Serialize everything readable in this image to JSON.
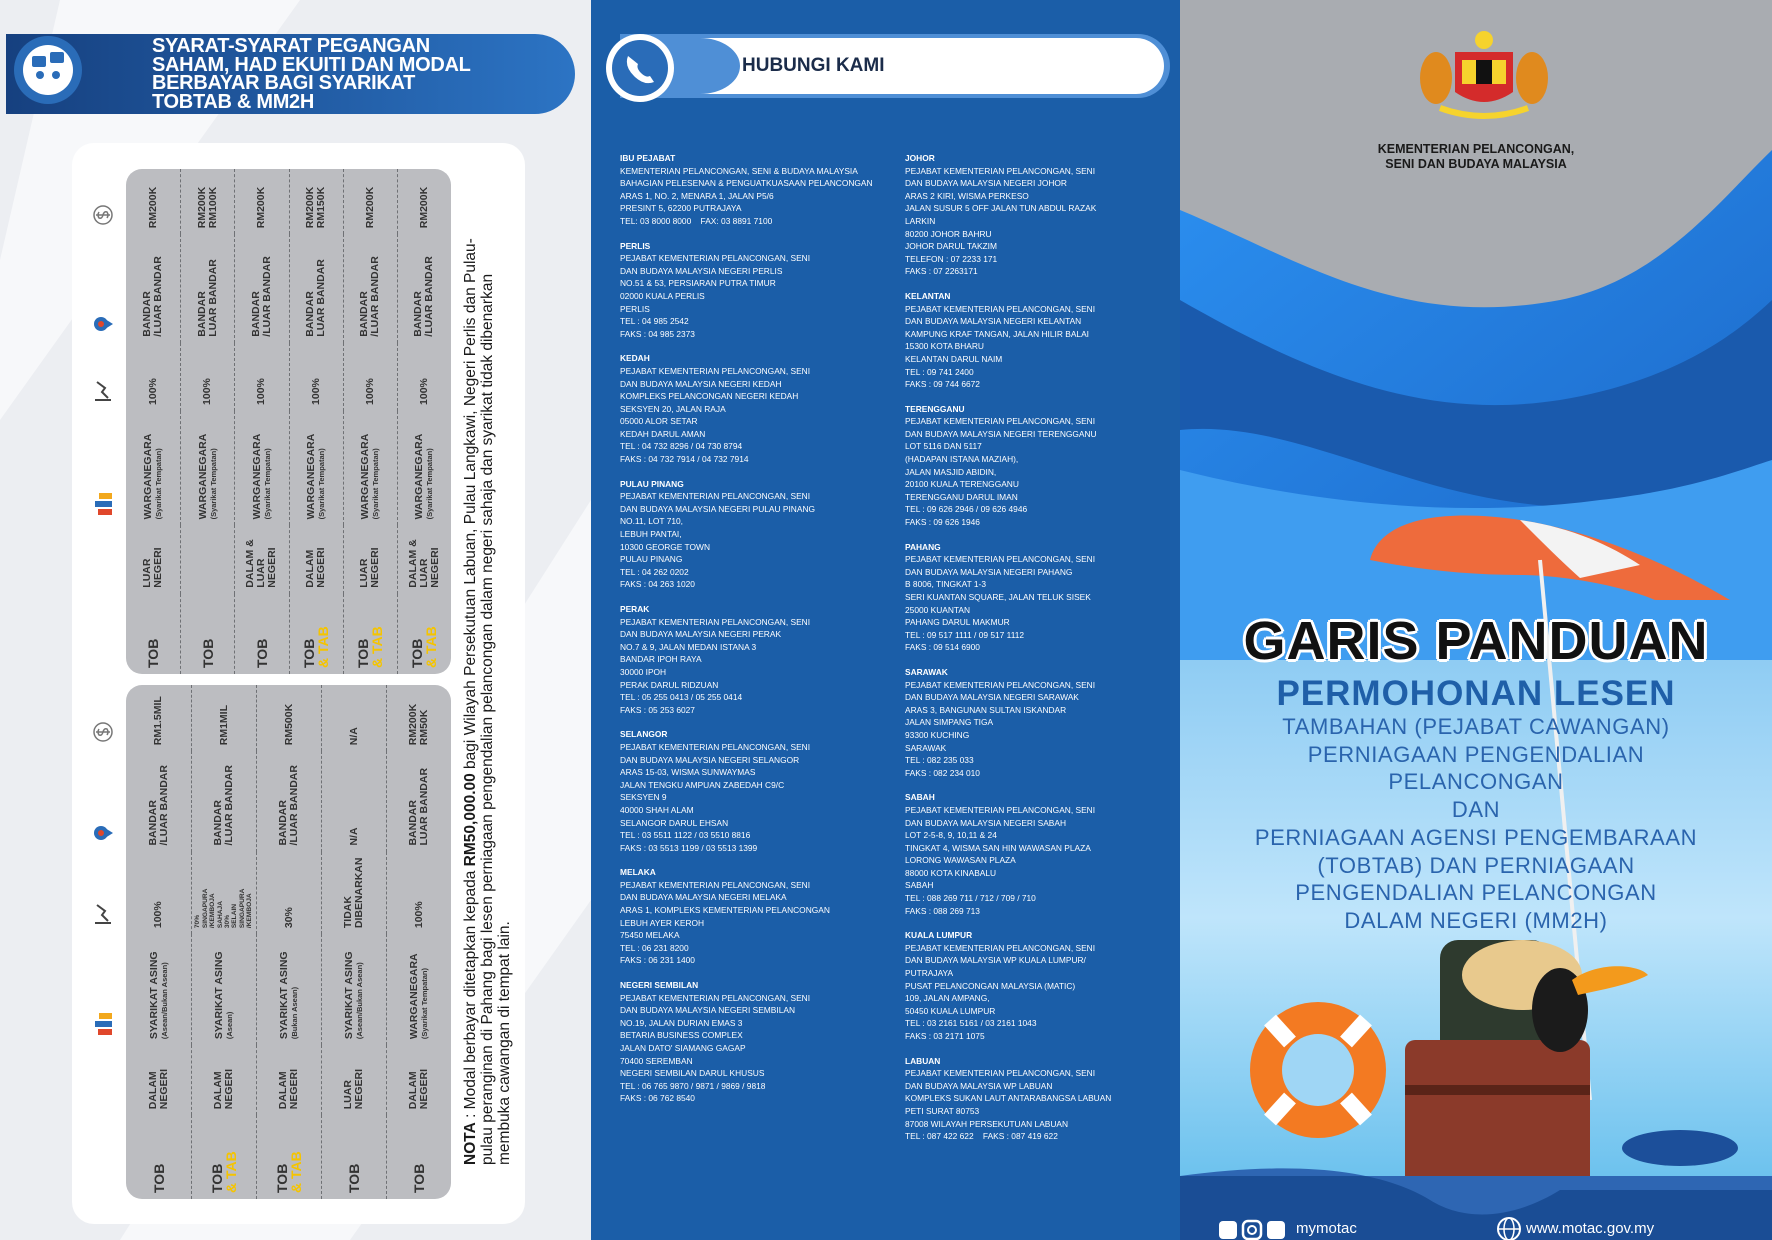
{
  "left_panel": {
    "title_lines": [
      "SYARAT-SYARAT PEGANGAN",
      "SAHAM, HAD EKUITI DAN MODAL",
      "BERBAYAR BAGI SYARIKAT",
      "TOBTAB & MM2H"
    ],
    "tables": [
      {
        "rows": [
          [
            "TOB",
            [
              "LUAR",
              "NEGERI"
            ],
            [
              "WARGANEGARA",
              "(Syarikat Tempatan)"
            ],
            "100%",
            [
              "BANDAR",
              "/LUAR BANDAR"
            ],
            "RM200K"
          ],
          [
            "TOB",
            null,
            [
              "WARGANEGARA",
              "(Syarikat Tempatan)"
            ],
            "100%",
            [
              "BANDAR",
              "LUAR BANDAR"
            ],
            [
              "RM200K",
              "RM100K"
            ]
          ],
          [
            "TOB",
            [
              "DALAM &",
              "LUAR",
              "NEGERI"
            ],
            [
              "WARGANEGARA",
              "(Syarikat Tempatan)"
            ],
            "100%",
            [
              "BANDAR",
              "/LUAR BANDAR"
            ],
            "RM200K"
          ],
          [
            [
              "TOB",
              "& TAB"
            ],
            [
              "DALAM",
              "NEGERI"
            ],
            [
              "WARGANEGARA",
              "(Syarikat Tempatan)"
            ],
            "100%",
            [
              "BANDAR",
              "LUAR BANDAR"
            ],
            [
              "RM200K",
              "RM150K"
            ]
          ],
          [
            [
              "TOB",
              "& TAB"
            ],
            [
              "LUAR",
              "NEGERI"
            ],
            [
              "WARGANEGARA",
              "(Syarikat Tempatan)"
            ],
            "100%",
            [
              "BANDAR",
              "/LUAR BANDAR"
            ],
            "RM200K"
          ],
          [
            [
              "TOB",
              "& TAB"
            ],
            [
              "DALAM &",
              "LUAR",
              "NEGERI"
            ],
            [
              "WARGANEGARA",
              "(Syarikat Tempatan)"
            ],
            "100%",
            [
              "BANDAR",
              "/LUAR BANDAR"
            ],
            "RM200K"
          ]
        ]
      },
      {
        "rows": [
          [
            "TOB",
            [
              "DALAM",
              "NEGERI"
            ],
            [
              "SYARIKAT ASING",
              "(Asean/Bukan Asean)"
            ],
            "100%",
            [
              "BANDAR",
              "/LUAR BANDAR"
            ],
            "RM1.5MIL"
          ],
          [
            [
              "TOB",
              "& TAB"
            ],
            [
              "DALAM",
              "NEGERI"
            ],
            [
              "SYARIKAT ASING",
              "(Asean)"
            ],
            [
              "70%",
              "SINGAPURA",
              "/KEMBOJA",
              "SAHAJA",
              "30%",
              "SELAIN",
              "SINGAPURA",
              "/KEMBOJA"
            ],
            [
              "BANDAR",
              "/LUAR BANDAR"
            ],
            "RM1MIL"
          ],
          [
            [
              "TOB",
              "& TAB"
            ],
            [
              "DALAM",
              "NEGERI"
            ],
            [
              "SYARIKAT ASING",
              "(Bukan Asean)"
            ],
            "30%",
            [
              "BANDAR",
              "/LUAR BANDAR"
            ],
            "RM500K"
          ],
          [
            "TOB",
            [
              "LUAR",
              "NEGERI"
            ],
            [
              "SYARIKAT ASING",
              "(Asean/Bukan Asean)"
            ],
            [
              "TIDAK",
              "DIBENARKAN"
            ],
            "N/A",
            "N/A"
          ],
          [
            "TOB",
            [
              "DALAM",
              "NEGERI"
            ],
            [
              "WARGANEGARA",
              "(Syarikat Tempatan)"
            ],
            "100%",
            [
              "BANDAR",
              "LUAR BANDAR"
            ],
            [
              "RM200K",
              "RM50K"
            ]
          ]
        ]
      }
    ],
    "note": {
      "label": "NOTA",
      "before": " : Modal berbayar ditetapkan kepada ",
      "emphasis": "RM50,000.00",
      "after": " bagi Wilayah Persekutuan Labuan, Pulau Langkawi, Negeri Perlis dan Pulau-pulau peranginan di Pahang bagi lesen perniagaan pengendalian pelancongan dalam negeri sahaja dan syarikat tidak dibenarkan membuka cawangan di tempat lain."
    }
  },
  "contact_panel": {
    "title": "HUBUNGI KAMI",
    "columns": [
      [
        {
          "name": "IBU PEJABAT",
          "lines": [
            "KEMENTERIAN PELANCONGAN, SENI & BUDAYA MALAYSIA",
            "BAHAGIAN PELESENAN & PENGUATKUASAAN PELANCONGAN",
            "ARAS 1, NO. 2, MENARA 1, JALAN P5/6",
            "PRESINT 5, 62200 PUTRAJAYA",
            "TEL: 03 8000 8000    FAX: 03 8891 7100"
          ]
        },
        {
          "name": "PERLIS",
          "lines": [
            "PEJABAT KEMENTERIAN PELANCONGAN, SENI",
            "DAN BUDAYA MALAYSIA NEGERI PERLIS",
            "NO.51 & 53, PERSIARAN PUTRA TIMUR",
            "02000 KUALA PERLIS",
            "PERLIS",
            "TEL : 04 985 2542",
            "FAKS : 04 985 2373"
          ]
        },
        {
          "name": "KEDAH",
          "lines": [
            "PEJABAT KEMENTERIAN PELANCONGAN, SENI",
            "DAN BUDAYA MALAYSIA NEGERI KEDAH",
            "KOMPLEKS PELANCONGAN NEGERI KEDAH",
            "SEKSYEN 20, JALAN RAJA",
            "05000 ALOR SETAR",
            "KEDAH DARUL AMAN",
            "TEL : 04 732 8296 / 04 730 8794",
            "FAKS : 04 732 7914 / 04 732 7914"
          ]
        },
        {
          "name": "PULAU PINANG",
          "lines": [
            "PEJABAT KEMENTERIAN PELANCONGAN, SENI",
            "DAN BUDAYA MALAYSIA NEGERI PULAU PINANG",
            "NO.11, LOT 710,",
            "LEBUH PANTAI,",
            "10300 GEORGE TOWN",
            "PULAU PINANG",
            "TEL : 04 262 0202",
            "FAKS : 04 263 1020"
          ]
        },
        {
          "name": "PERAK",
          "lines": [
            "PEJABAT KEMENTERIAN PELANCONGAN, SENI",
            "DAN BUDAYA MALAYSIA NEGERI PERAK",
            "NO.7 & 9, JALAN MEDAN ISTANA 3",
            "BANDAR IPOH RAYA",
            "30000 IPOH",
            "PERAK DARUL RIDZUAN",
            "TEL : 05 255 0413 / 05 255 0414",
            "FAKS : 05 253 6027"
          ]
        },
        {
          "name": "SELANGOR",
          "lines": [
            "PEJABAT KEMENTERIAN PELANCONGAN, SENI",
            "DAN BUDAYA MALAYSIA NEGERI SELANGOR",
            "ARAS 15-03, WISMA SUNWAYMAS",
            "JALAN TENGKU AMPUAN ZABEDAH C9/C",
            "SEKSYEN 9",
            "40000 SHAH ALAM",
            "SELANGOR DARUL EHSAN",
            "TEL : 03 5511 1122 / 03 5510 8816",
            "FAKS : 03 5513 1199 / 03 5513 1399"
          ]
        },
        {
          "name": "MELAKA",
          "lines": [
            "PEJABAT KEMENTERIAN PELANCONGAN, SENI",
            "DAN BUDAYA MALAYSIA NEGERI MELAKA",
            "ARAS 1, KOMPLEKS KEMENTERIAN PELANCONGAN",
            "LEBUH AYER KEROH",
            "75450 MELAKA",
            "TEL : 06 231 8200",
            "FAKS : 06 231 1400"
          ]
        },
        {
          "name": "NEGERI SEMBILAN",
          "lines": [
            "PEJABAT KEMENTERIAN PELANCONGAN, SENI",
            "DAN BUDAYA MALAYSIA NEGERI SEMBILAN",
            "NO.19, JALAN DURIAN EMAS 3",
            "BETARIA BUSINESS COMPLEX",
            "JALAN DATO' SIAMANG GAGAP",
            "70400 SEREMBAN",
            "NEGERI SEMBILAN DARUL KHUSUS",
            "TEL : 06 765 9870 / 9871 / 9869 / 9818",
            "FAKS : 06 762 8540"
          ]
        }
      ],
      [
        {
          "name": "JOHOR",
          "lines": [
            "PEJABAT KEMENTERIAN PELANCONGAN, SENI",
            "DAN BUDAYA MALAYSIA NEGERI JOHOR",
            "ARAS 2 KIRI, WISMA PERKESO",
            "JALAN SUSUR 5 OFF JALAN TUN ABDUL RAZAK",
            "LARKIN",
            "80200 JOHOR BAHRU",
            "JOHOR DARUL TAKZIM",
            "TELEFON : 07 2233 171",
            "FAKS : 07 2263171"
          ]
        },
        {
          "name": "KELANTAN",
          "lines": [
            "PEJABAT KEMENTERIAN PELANCONGAN, SENI",
            "DAN BUDAYA MALAYSIA NEGERI KELANTAN",
            "KAMPUNG KRAF TANGAN, JALAN HILIR BALAI",
            "15300 KOTA BHARU",
            "KELANTAN DARUL NAIM",
            "TEL : 09 741 2400",
            "FAKS : 09 744 6672"
          ]
        },
        {
          "name": "TERENGGANU",
          "lines": [
            "PEJABAT KEMENTERIAN PELANCONGAN, SENI",
            "DAN BUDAYA MALAYSIA NEGERI TERENGGANU",
            "LOT 5116 DAN 5117",
            "(HADAPAN ISTANA MAZIAH),",
            "JALAN MASJID ABIDIN,",
            "20100 KUALA TERENGGANU",
            "TERENGGANU DARUL IMAN",
            "TEL : 09 626 2946 / 09 626 4946",
            "FAKS : 09 626 1946"
          ]
        },
        {
          "name": "PAHANG",
          "lines": [
            "PEJABAT KEMENTERIAN PELANCONGAN, SENI",
            "DAN BUDAYA MALAYSIA NEGERI PAHANG",
            "B 8006, TINGKAT 1-3",
            "SERI KUANTAN SQUARE, JALAN TELUK SISEK",
            "25000 KUANTAN",
            "PAHANG DARUL MAKMUR",
            "TEL : 09 517 1111 / 09 517 1112",
            "FAKS : 09 514 6900"
          ]
        },
        {
          "name": "SARAWAK",
          "lines": [
            "PEJABAT KEMENTERIAN PELANCONGAN, SENI",
            "DAN BUDAYA MALAYSIA NEGERI SARAWAK",
            "ARAS 3, BANGUNAN SULTAN ISKANDAR",
            "JALAN SIMPANG TIGA",
            "93300 KUCHING",
            "SARAWAK",
            "TEL : 082 235 033",
            "FAKS : 082 234 010"
          ]
        },
        {
          "name": "SABAH",
          "lines": [
            "PEJABAT KEMENTERIAN PELANCONGAN, SENI",
            "DAN BUDAYA MALAYSIA NEGERI SABAH",
            "LOT 2-5-8, 9, 10,11 & 24",
            "TINGKAT 4, WISMA SAN HIN WAWASAN PLAZA",
            "LORONG WAWASAN PLAZA",
            "88000 KOTA KINABALU",
            "SABAH",
            "TEL : 088 269 711 / 712 / 709 / 710",
            "FAKS : 088 269 713"
          ]
        },
        {
          "name": "KUALA LUMPUR",
          "lines": [
            "PEJABAT KEMENTERIAN PELANCONGAN, SENI",
            "DAN BUDAYA MALAYSIA WP KUALA LUMPUR/",
            "PUTRAJAYA",
            "PUSAT PELANCONGAN MALAYSIA (MATIC)",
            "109, JALAN AMPANG,",
            "50450 KUALA LUMPUR",
            "TEL : 03 2161 5161 / 03 2161 1043",
            "FAKS : 03 2171 1075"
          ]
        },
        {
          "name": "LABUAN",
          "lines": [
            "PEJABAT KEMENTERIAN PELANCONGAN, SENI",
            "DAN BUDAYA MALAYSIA WP LABUAN",
            "KOMPLEKS SUKAN LAUT ANTARABANGSA LABUAN",
            "PETI SURAT 80753",
            "87008 WILAYAH PERSEKUTUAN LABUAN",
            "TEL : 087 422 622    FAKS : 087 419 622"
          ]
        }
      ]
    ]
  },
  "cover_panel": {
    "ministry_lines": [
      "KEMENTERIAN PELANCONGAN,",
      "SENI DAN BUDAYA MALAYSIA"
    ],
    "title": "GARIS PANDUAN",
    "subtitle": "PERMOHONAN LESEN",
    "description_lines": [
      "TAMBAHAN (PEJABAT CAWANGAN)",
      "PERNIAGAAN PENGENDALIAN",
      "PELANCONGAN",
      "DAN",
      "PERNIAGAAN AGENSI PENGEMBARAAN",
      "(TOBTAB) DAN PERNIAGAAN",
      "PENGENDALIAN PELANCONGAN",
      "DALAM NEGERI (MM2H)"
    ],
    "social_handle": "mymotac",
    "website": "www.motac.gov.my"
  }
}
